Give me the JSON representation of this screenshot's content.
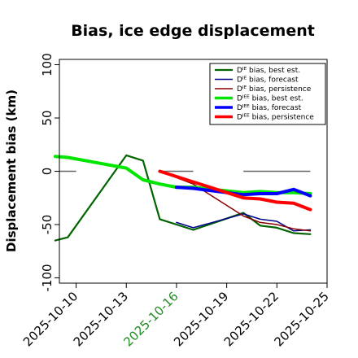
{
  "chart_data": {
    "type": "line",
    "title": "Bias, ice edge displacement",
    "xlabel": "",
    "ylabel": "Displacement bias (km)",
    "ylim": [
      -105,
      105
    ],
    "xlim": [
      "2025-10-09",
      "2025-10-25"
    ],
    "yticks": [
      100,
      50,
      0,
      -50,
      -100
    ],
    "xticks": [
      {
        "date": "2025-10-10",
        "label": "2025-10-10",
        "color": "#000000"
      },
      {
        "date": "2025-10-13",
        "label": "2025-10-13",
        "color": "#000000"
      },
      {
        "date": "2025-10-16",
        "label": "2025-10-16",
        "color": "#228b22"
      },
      {
        "date": "2025-10-19",
        "label": "2025-10-19",
        "color": "#000000"
      },
      {
        "date": "2025-10-22",
        "label": "2025-10-22",
        "color": "#000000"
      },
      {
        "date": "2025-10-25",
        "label": "2025-10-25",
        "color": "#000000"
      }
    ],
    "zero_segments": [
      [
        "2025-10-09",
        "2025-10-10"
      ],
      [
        "2025-10-15",
        "2025-10-17"
      ],
      [
        "2025-10-20",
        "2025-10-24"
      ]
    ],
    "legend_position": "top-right",
    "series": [
      {
        "name": "Dᴵᴱ bias, best est.",
        "color": "#006400",
        "width": 2.2,
        "points": [
          [
            "2025-10-08T18:00",
            -65
          ],
          [
            "2025-10-09T12:00",
            -62
          ],
          [
            "2025-10-13",
            15
          ],
          [
            "2025-10-14",
            10
          ],
          [
            "2025-10-15",
            -45
          ],
          [
            "2025-10-17",
            -55
          ],
          [
            "2025-10-20",
            -39
          ],
          [
            "2025-10-21",
            -51
          ],
          [
            "2025-10-22",
            -53
          ],
          [
            "2025-10-23",
            -58
          ],
          [
            "2025-10-24",
            -59
          ]
        ]
      },
      {
        "name": "Dᴵᴱ bias, forecast",
        "color": "#00008b",
        "width": 1.5,
        "points": [
          [
            "2025-10-16",
            -48
          ],
          [
            "2025-10-17",
            -53
          ],
          [
            "2025-10-20",
            -40
          ],
          [
            "2025-10-21",
            -45
          ],
          [
            "2025-10-22",
            -47
          ],
          [
            "2025-10-23",
            -56
          ],
          [
            "2025-10-24",
            -55
          ]
        ]
      },
      {
        "name": "Dᴵᴱ bias, persistence",
        "color": "#8b0000",
        "width": 1.5,
        "points": [
          [
            "2025-10-15",
            0
          ],
          [
            "2025-10-17",
            -12
          ],
          [
            "2025-10-20",
            -42
          ],
          [
            "2025-10-21",
            -48
          ],
          [
            "2025-10-22",
            -50
          ],
          [
            "2025-10-23",
            -54
          ],
          [
            "2025-10-24",
            -56
          ]
        ]
      },
      {
        "name": "Dᴵᴱᴱ bias, best est.",
        "color": "#00e600",
        "width": 4,
        "points": [
          [
            "2025-10-08T18:00",
            14
          ],
          [
            "2025-10-09T12:00",
            13
          ],
          [
            "2025-10-13",
            3
          ],
          [
            "2025-10-14",
            -8
          ],
          [
            "2025-10-15",
            -12
          ],
          [
            "2025-10-16",
            -15
          ],
          [
            "2025-10-17",
            -15
          ],
          [
            "2025-10-20",
            -20
          ],
          [
            "2025-10-21",
            -19
          ],
          [
            "2025-10-22",
            -20
          ],
          [
            "2025-10-23",
            -20
          ],
          [
            "2025-10-24",
            -21
          ]
        ]
      },
      {
        "name": "Dᴵᴱᴱ bias, forecast",
        "color": "#0000ff",
        "width": 4,
        "points": [
          [
            "2025-10-16",
            -15
          ],
          [
            "2025-10-17",
            -16
          ],
          [
            "2025-10-20",
            -22
          ],
          [
            "2025-10-21",
            -21
          ],
          [
            "2025-10-22",
            -21
          ],
          [
            "2025-10-23",
            -17
          ],
          [
            "2025-10-24",
            -23
          ]
        ]
      },
      {
        "name": "Dᴵᴱᴱ bias, persistence",
        "color": "#ff0000",
        "width": 4,
        "points": [
          [
            "2025-10-15",
            0
          ],
          [
            "2025-10-16",
            -5
          ],
          [
            "2025-10-17",
            -10
          ],
          [
            "2025-10-20",
            -25
          ],
          [
            "2025-10-21",
            -26
          ],
          [
            "2025-10-22",
            -29
          ],
          [
            "2025-10-23",
            -30
          ],
          [
            "2025-10-24",
            -36
          ]
        ]
      }
    ],
    "connectors": [
      {
        "color": "#006400",
        "from": [
          "2025-10-09T12:00",
          -62
        ],
        "to": [
          "2025-10-13",
          15
        ]
      },
      {
        "color": "#00e600",
        "from": [
          "2025-10-09T12:00",
          13
        ],
        "to": [
          "2025-10-13",
          3
        ]
      },
      {
        "color": "#006400",
        "from": [
          "2025-10-17",
          -55
        ],
        "to": [
          "2025-10-20",
          -39
        ]
      },
      {
        "color": "#00008b",
        "from": [
          "2025-10-17",
          -53
        ],
        "to": [
          "2025-10-20",
          -40
        ]
      },
      {
        "color": "#8b0000",
        "from": [
          "2025-10-17",
          -12
        ],
        "to": [
          "2025-10-20",
          -42
        ]
      },
      {
        "color": "#ff0000",
        "from": [
          "2025-10-17",
          -10
        ],
        "to": [
          "2025-10-20",
          -25
        ]
      },
      {
        "color": "#0000ff",
        "from": [
          "2025-10-17",
          -16
        ],
        "to": [
          "2025-10-20",
          -22
        ]
      },
      {
        "color": "#00e600",
        "from": [
          "2025-10-17",
          -15
        ],
        "to": [
          "2025-10-20",
          -20
        ]
      }
    ]
  }
}
